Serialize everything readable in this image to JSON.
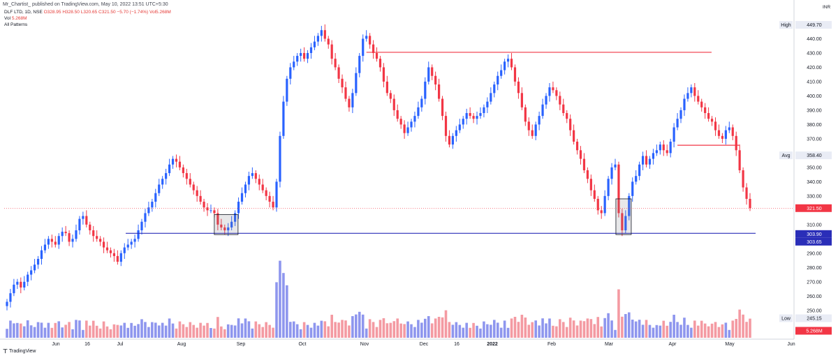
{
  "header": {
    "published_line": "Mr_Chartist_ published on TradingView.com, May 10, 2022 13:51 UTC+5:30"
  },
  "legend": {
    "symbol": "DLF LTD, 1D, NSE",
    "ohlc": "O328.95 H328.50 L320.65 C321.50 −5.70 (−1.74%) Vol5.268M",
    "volume": "Vol",
    "volume_value": "5.268M",
    "indicator": "All Patterns"
  },
  "price_axis": {
    "currency": "INR",
    "labels": [
      "440.00",
      "430.00",
      "420.00",
      "410.00",
      "400.00",
      "390.00",
      "380.00",
      "370.00",
      "350.00",
      "340.00",
      "330.00",
      "310.00",
      "290.00",
      "280.00",
      "270.00",
      "260.00",
      "250.00"
    ],
    "markers": {
      "high_label": "High",
      "high_value": "449.70",
      "avg_label": "Avg",
      "avg_value": "358.40",
      "last_value": "321.50",
      "support_value_1": "303.90",
      "support_value_2": "303.65",
      "low_label": "Low",
      "low_value": "245.15",
      "volume_last": "5.268M"
    }
  },
  "time_axis": {
    "labels": [
      "Jun",
      "16",
      "Jul",
      "Aug",
      "Sep",
      "Oct",
      "Nov",
      "Dec",
      "16",
      "2022",
      "Feb",
      "Mar",
      "Apr",
      "May",
      "Jun"
    ]
  },
  "footer": {
    "brand": "TradingView"
  },
  "colors": {
    "up": "#2962ff",
    "down": "#f23645",
    "support": "#2a2eb8",
    "resistance": "#f23645",
    "vol_up": "#8e96ee",
    "vol_down": "#f49aa2"
  },
  "chart_data": {
    "type": "candlestick",
    "symbol": "DLF LTD",
    "interval": "1D",
    "exchange": "NSE",
    "ylim": [
      245,
      450
    ],
    "closes": [
      256,
      262,
      268,
      270,
      266,
      270,
      275,
      278,
      282,
      286,
      292,
      296,
      300,
      298,
      296,
      302,
      305,
      304,
      298,
      300,
      306,
      314,
      316,
      310,
      306,
      302,
      300,
      298,
      294,
      292,
      290,
      288,
      284,
      290,
      294,
      296,
      298,
      300,
      306,
      312,
      318,
      322,
      326,
      332,
      338,
      342,
      346,
      352,
      356,
      354,
      350,
      346,
      342,
      338,
      334,
      330,
      326,
      322,
      320,
      320,
      318,
      310,
      308,
      306,
      308,
      312,
      318,
      326,
      332,
      338,
      344,
      346,
      342,
      338,
      334,
      330,
      326,
      322,
      340,
      372,
      396,
      412,
      420,
      424,
      428,
      430,
      426,
      430,
      434,
      438,
      442,
      446,
      440,
      436,
      426,
      420,
      412,
      406,
      398,
      392,
      402,
      416,
      428,
      440,
      442,
      436,
      430,
      426,
      420,
      410,
      402,
      398,
      390,
      384,
      380,
      374,
      378,
      382,
      386,
      392,
      398,
      410,
      420,
      414,
      408,
      398,
      386,
      372,
      366,
      372,
      376,
      380,
      384,
      388,
      386,
      384,
      386,
      388,
      392,
      396,
      402,
      408,
      414,
      418,
      424,
      426,
      420,
      410,
      402,
      392,
      382,
      376,
      372,
      380,
      386,
      394,
      400,
      406,
      404,
      400,
      394,
      388,
      384,
      376,
      368,
      362,
      356,
      348,
      342,
      334,
      328,
      320,
      318,
      330,
      342,
      350,
      352,
      318,
      306,
      316,
      330,
      340,
      344,
      352,
      358,
      352,
      356,
      360,
      362,
      366,
      362,
      360,
      368,
      378,
      384,
      390,
      398,
      402,
      406,
      400,
      396,
      392,
      388,
      384,
      382,
      376,
      372,
      370,
      376,
      378,
      372,
      362,
      348,
      336,
      328,
      321.5
    ],
    "support_level": 303.9,
    "resistance_levels": [
      {
        "price": 430.5,
        "from_index": 104,
        "to_index": 216
      },
      {
        "price": 365.5,
        "from_index": 194,
        "to_index": 212
      }
    ],
    "last_close": 321.5,
    "high": 449.7,
    "low": 245.15,
    "average": 358.4
  }
}
